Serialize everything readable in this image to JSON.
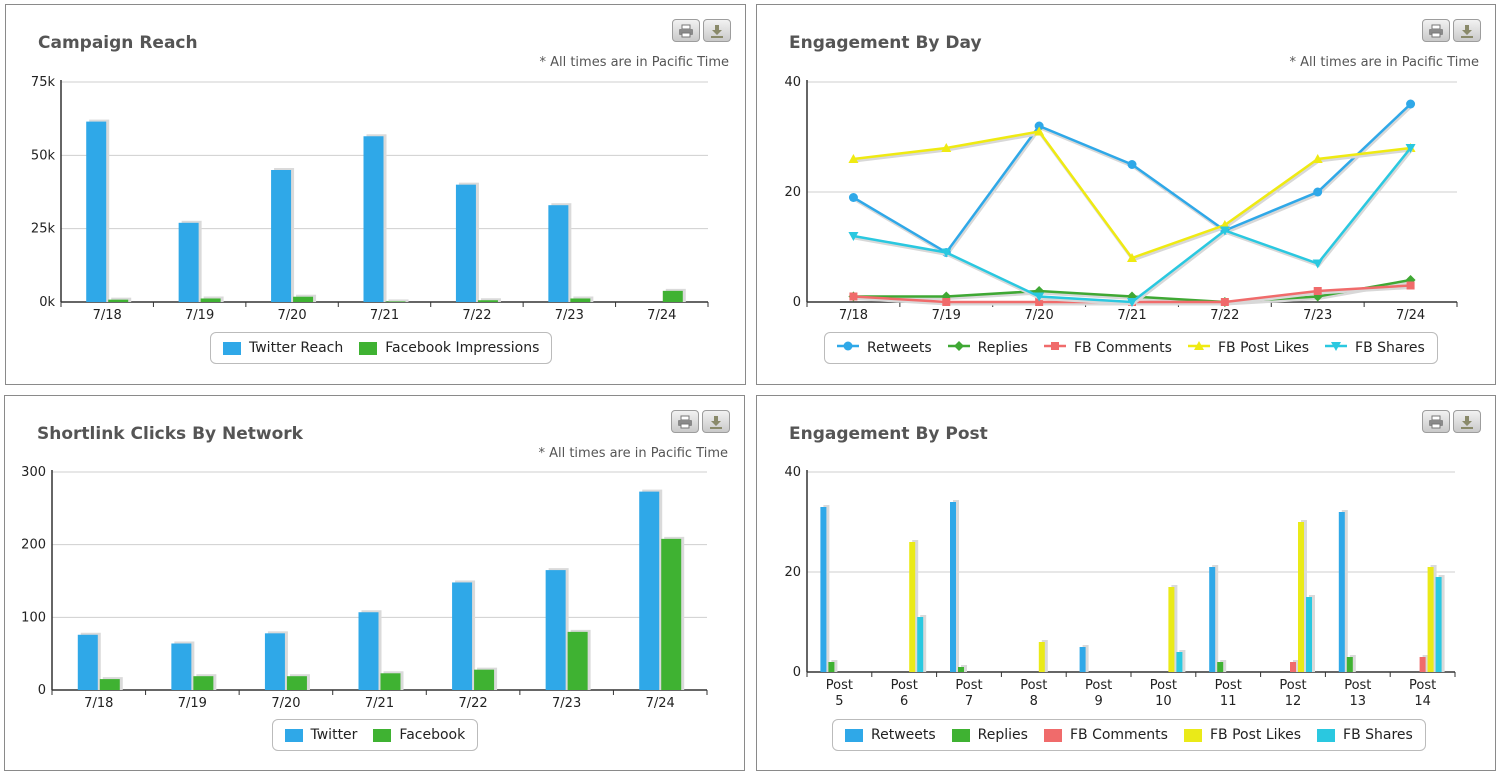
{
  "panels": [
    {
      "title": "Campaign Reach",
      "note": "* All times are in Pacific Time",
      "legend": [
        "Twitter Reach",
        "Facebook Impressions"
      ]
    },
    {
      "title": "Engagement By Day",
      "note": "* All times are in Pacific Time",
      "legend": [
        "Retweets",
        "Replies",
        "FB Comments",
        "FB Post Likes",
        "FB Shares"
      ]
    },
    {
      "title": "Shortlink Clicks By Network",
      "note": "* All times are in Pacific Time",
      "legend": [
        "Twitter",
        "Facebook"
      ]
    },
    {
      "title": "Engagement By Post",
      "note": "",
      "legend": [
        "Retweets",
        "Replies",
        "FB Comments",
        "FB Post Likes",
        "FB Shares"
      ]
    }
  ],
  "chart_data": [
    {
      "type": "bar",
      "title": "Campaign Reach",
      "categories": [
        "7/18",
        "7/19",
        "7/20",
        "7/21",
        "7/22",
        "7/23",
        "7/24"
      ],
      "ylim": [
        0,
        75000
      ],
      "yticks": [
        0,
        25000,
        50000,
        75000
      ],
      "ytick_labels": [
        "0k",
        "25k",
        "50k",
        "75k"
      ],
      "legend_position": "bottom",
      "series": [
        {
          "name": "Twitter Reach",
          "color": "#2fa8e8",
          "values": [
            61500,
            27000,
            45000,
            56500,
            40000,
            33000,
            0
          ]
        },
        {
          "name": "Facebook Impressions",
          "color": "#3fb232",
          "values": [
            800,
            1200,
            1800,
            200,
            600,
            1200,
            3800
          ]
        }
      ]
    },
    {
      "type": "line",
      "title": "Engagement By Day",
      "categories": [
        "7/18",
        "7/19",
        "7/20",
        "7/21",
        "7/22",
        "7/23",
        "7/24"
      ],
      "ylim": [
        0,
        40
      ],
      "yticks": [
        0,
        20,
        40
      ],
      "legend_position": "bottom",
      "series": [
        {
          "name": "Retweets",
          "color": "#2fa8e8",
          "marker": "circle",
          "values": [
            19,
            9,
            32,
            25,
            13,
            20,
            36
          ]
        },
        {
          "name": "Replies",
          "color": "#3fa834",
          "marker": "diamond",
          "values": [
            1,
            1,
            2,
            1,
            0,
            1,
            4
          ]
        },
        {
          "name": "FB Comments",
          "color": "#f06b6b",
          "marker": "square",
          "values": [
            1,
            0,
            0,
            0,
            0,
            2,
            3
          ]
        },
        {
          "name": "FB Post Likes",
          "color": "#efea12",
          "marker": "triangle",
          "values": [
            26,
            28,
            31,
            8,
            14,
            26,
            28
          ]
        },
        {
          "name": "FB Shares",
          "color": "#2ac8e0",
          "marker": "triangle-down",
          "values": [
            12,
            9,
            1,
            0,
            13,
            7,
            28
          ]
        }
      ]
    },
    {
      "type": "bar",
      "title": "Shortlink Clicks By Network",
      "categories": [
        "7/18",
        "7/19",
        "7/20",
        "7/21",
        "7/22",
        "7/23",
        "7/24"
      ],
      "ylim": [
        0,
        300
      ],
      "yticks": [
        0,
        100,
        200,
        300
      ],
      "legend_position": "bottom",
      "series": [
        {
          "name": "Twitter",
          "color": "#2fa8e8",
          "values": [
            76,
            64,
            78,
            107,
            148,
            165,
            273
          ]
        },
        {
          "name": "Facebook",
          "color": "#3fb232",
          "values": [
            15,
            19,
            19,
            23,
            28,
            80,
            208
          ]
        }
      ]
    },
    {
      "type": "bar",
      "title": "Engagement By Post",
      "categories": [
        "Post 5",
        "Post 6",
        "Post 7",
        "Post 8",
        "Post 9",
        "Post 10",
        "Post 11",
        "Post 12",
        "Post 13",
        "Post 14"
      ],
      "ylim": [
        0,
        40
      ],
      "yticks": [
        0,
        20,
        40
      ],
      "legend_position": "bottom",
      "series": [
        {
          "name": "Retweets",
          "color": "#2fa8e8",
          "values": [
            33,
            0,
            34,
            0,
            5,
            0,
            21,
            0,
            32,
            0
          ]
        },
        {
          "name": "Replies",
          "color": "#3fb232",
          "values": [
            2,
            0,
            1,
            0,
            0,
            0,
            2,
            0,
            3,
            0
          ]
        },
        {
          "name": "FB Comments",
          "color": "#f06b6b",
          "values": [
            0,
            0,
            0,
            0,
            0,
            0,
            0,
            2,
            0,
            3
          ]
        },
        {
          "name": "FB Post Likes",
          "color": "#eaea18",
          "values": [
            0,
            26,
            0,
            6,
            0,
            17,
            0,
            30,
            0,
            21
          ]
        },
        {
          "name": "FB Shares",
          "color": "#2ac8e0",
          "values": [
            0,
            11,
            0,
            0,
            0,
            4,
            0,
            15,
            0,
            19
          ]
        }
      ]
    }
  ]
}
